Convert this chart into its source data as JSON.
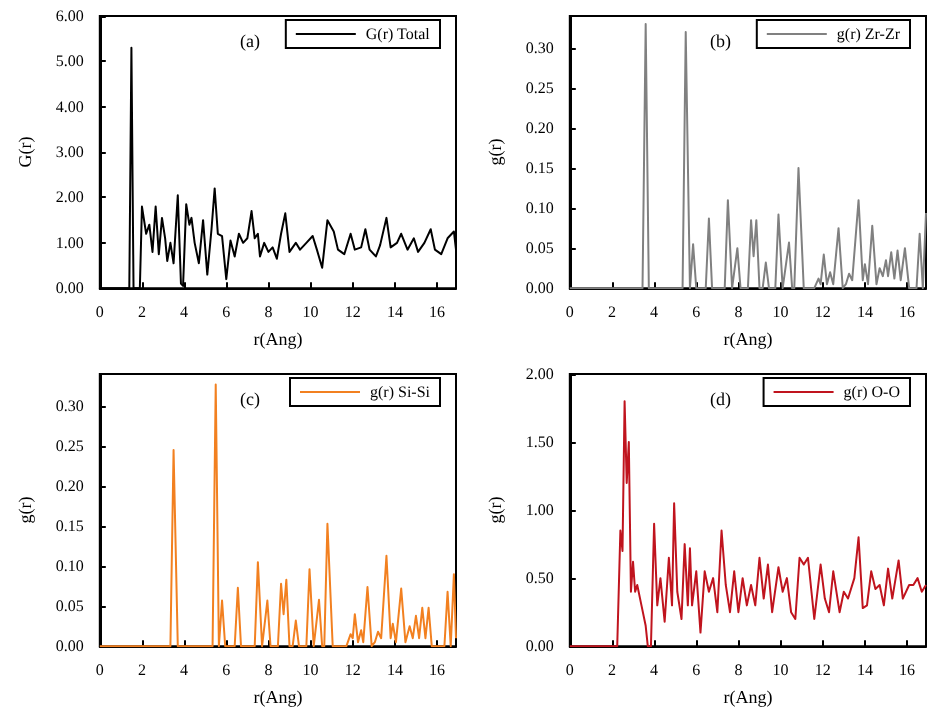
{
  "chart_data": [
    {
      "type": "line",
      "xlabel": "r(Ang)",
      "ylabel": "G(r)",
      "annotations": [
        "(a)"
      ],
      "legend": "top right",
      "grid": false,
      "xlim": [
        0,
        16.9
      ],
      "xticks": [
        0,
        2,
        4,
        6,
        8,
        10,
        12,
        14,
        16
      ],
      "ylim": [
        0,
        6
      ],
      "yticks": [
        {
          "value": 0,
          "label": "0.00"
        },
        {
          "value": 1,
          "label": "1.00"
        },
        {
          "value": 2,
          "label": "2.00"
        },
        {
          "value": 3,
          "label": "3.00"
        },
        {
          "value": 4,
          "label": "4.00"
        },
        {
          "value": 5,
          "label": "5.00"
        },
        {
          "value": 6,
          "label": "6.00"
        }
      ],
      "x": [
        0,
        1.4,
        1.5,
        1.6,
        1.9,
        2.0,
        2.2,
        2.35,
        2.5,
        2.65,
        2.8,
        2.95,
        3.1,
        3.2,
        3.35,
        3.5,
        3.7,
        3.85,
        3.95,
        4.1,
        4.25,
        4.35,
        4.5,
        4.7,
        4.9,
        5.1,
        5.3,
        5.45,
        5.6,
        5.8,
        6.0,
        6.2,
        6.4,
        6.6,
        6.8,
        7.0,
        7.2,
        7.35,
        7.5,
        7.6,
        7.8,
        8.0,
        8.2,
        8.4,
        8.6,
        8.8,
        9.0,
        9.3,
        9.5,
        9.8,
        10.1,
        10.3,
        10.55,
        10.8,
        11.1,
        11.3,
        11.6,
        11.9,
        12.1,
        12.4,
        12.6,
        12.8,
        13.1,
        13.3,
        13.6,
        13.8,
        14.1,
        14.3,
        14.6,
        14.9,
        15.1,
        15.4,
        15.7,
        15.9,
        16.2,
        16.5,
        16.8,
        16.9
      ],
      "series": [
        {
          "name": "G(r) Total",
          "color": "#000000",
          "values": [
            0,
            0,
            5.3,
            0,
            0,
            1.8,
            1.2,
            1.4,
            0.8,
            1.8,
            0.75,
            1.55,
            1.1,
            0.6,
            1.0,
            0.55,
            2.05,
            0.1,
            0.05,
            1.85,
            1.4,
            1.55,
            1.0,
            0.55,
            1.5,
            0.3,
            1.3,
            2.2,
            1.2,
            1.15,
            0.2,
            1.05,
            0.7,
            1.2,
            1.0,
            1.1,
            1.7,
            1.1,
            1.2,
            0.7,
            1.0,
            0.8,
            0.9,
            0.65,
            1.2,
            1.65,
            0.8,
            1.0,
            0.85,
            1.0,
            1.15,
            0.85,
            0.45,
            1.5,
            1.25,
            0.85,
            0.75,
            1.2,
            0.85,
            0.9,
            1.3,
            0.85,
            0.7,
            0.95,
            1.55,
            0.9,
            1.0,
            1.2,
            0.85,
            1.1,
            0.8,
            1.0,
            1.3,
            0.85,
            0.75,
            1.1,
            1.25,
            0.85
          ]
        }
      ]
    },
    {
      "type": "line",
      "xlabel": "r(Ang)",
      "ylabel": "g(r)",
      "annotations": [
        "(b)"
      ],
      "legend": "top right",
      "grid": false,
      "xlim": [
        0,
        16.9
      ],
      "xticks": [
        0,
        2,
        4,
        6,
        8,
        10,
        12,
        14,
        16
      ],
      "ylim": [
        0,
        0.34
      ],
      "yticks": [
        {
          "value": 0,
          "label": "0.00"
        },
        {
          "value": 0.05,
          "label": "0.05"
        },
        {
          "value": 0.1,
          "label": "0.10"
        },
        {
          "value": 0.15,
          "label": "0.15"
        },
        {
          "value": 0.2,
          "label": "0.20"
        },
        {
          "value": 0.25,
          "label": "0.25"
        },
        {
          "value": 0.3,
          "label": "0.30"
        }
      ],
      "x": [
        0,
        3.45,
        3.6,
        3.75,
        5.35,
        5.5,
        5.7,
        5.85,
        6.0,
        6.45,
        6.6,
        6.75,
        7.35,
        7.5,
        7.7,
        7.95,
        8.1,
        8.45,
        8.6,
        8.72,
        8.85,
        9.0,
        9.15,
        9.3,
        9.45,
        9.75,
        9.9,
        10.1,
        10.4,
        10.55,
        10.65,
        10.85,
        11.1,
        11.6,
        11.8,
        11.9,
        12.05,
        12.2,
        12.35,
        12.5,
        12.75,
        12.95,
        13.1,
        13.25,
        13.4,
        13.7,
        13.9,
        14.0,
        14.15,
        14.35,
        14.55,
        14.7,
        14.85,
        15.0,
        15.1,
        15.25,
        15.4,
        15.55,
        15.7,
        15.9,
        16.1,
        16.45,
        16.6,
        16.75,
        16.9
      ],
      "series": [
        {
          "name": "g(r) Zr-Zr",
          "color": "#808080",
          "values": [
            0,
            0,
            0.33,
            0,
            0,
            0.32,
            0,
            0.055,
            0,
            0,
            0.087,
            0,
            0,
            0.11,
            0,
            0.05,
            0,
            0,
            0.085,
            0.04,
            0.085,
            0,
            0,
            0.032,
            0,
            0,
            0.092,
            0,
            0.057,
            0,
            0,
            0.15,
            0,
            0,
            0.012,
            0.005,
            0.042,
            0.005,
            0.02,
            0.005,
            0.075,
            0,
            0.005,
            0.018,
            0.01,
            0.11,
            0.01,
            0.03,
            0.005,
            0.078,
            0.005,
            0.025,
            0.015,
            0.035,
            0.015,
            0.045,
            0.012,
            0.047,
            0.01,
            0.05,
            0,
            0,
            0.068,
            0,
            0.094
          ]
        }
      ]
    },
    {
      "type": "line",
      "xlabel": "r(Ang)",
      "ylabel": "g(r)",
      "annotations": [
        "(c)"
      ],
      "legend": "top right",
      "grid": false,
      "xlim": [
        0,
        16.9
      ],
      "xticks": [
        0,
        2,
        4,
        6,
        8,
        10,
        12,
        14,
        16
      ],
      "ylim": [
        0,
        0.34
      ],
      "yticks": [
        {
          "value": 0,
          "label": "0.00"
        },
        {
          "value": 0.05,
          "label": "0.05"
        },
        {
          "value": 0.1,
          "label": "0.10"
        },
        {
          "value": 0.15,
          "label": "0.15"
        },
        {
          "value": 0.2,
          "label": "0.20"
        },
        {
          "value": 0.25,
          "label": "0.25"
        },
        {
          "value": 0.3,
          "label": "0.30"
        }
      ],
      "x": [
        0,
        3.35,
        3.5,
        3.7,
        5.35,
        5.5,
        5.65,
        5.8,
        5.95,
        6.4,
        6.55,
        6.7,
        7.35,
        7.5,
        7.7,
        7.95,
        8.1,
        8.25,
        8.45,
        8.6,
        8.72,
        8.85,
        9.0,
        9.15,
        9.3,
        9.45,
        9.8,
        9.95,
        10.15,
        10.4,
        10.55,
        10.65,
        10.8,
        11.05,
        11.7,
        11.9,
        12.0,
        12.1,
        12.25,
        12.4,
        12.5,
        12.7,
        12.9,
        13.05,
        13.2,
        13.35,
        13.6,
        13.8,
        13.9,
        14.05,
        14.3,
        14.5,
        14.7,
        14.85,
        15.0,
        15.15,
        15.3,
        15.45,
        15.6,
        15.75,
        16.1,
        16.35,
        16.5,
        16.65,
        16.8,
        16.9
      ],
      "series": [
        {
          "name": "g(r) Si-Si",
          "color": "#f28020",
          "values": [
            0,
            0,
            0.245,
            0,
            0,
            0.327,
            0,
            0.057,
            0,
            0,
            0.073,
            0,
            0,
            0.105,
            0,
            0.057,
            0,
            0,
            0,
            0.078,
            0.04,
            0.083,
            0,
            0,
            0.032,
            0,
            0,
            0.096,
            0,
            0.058,
            0,
            0,
            0.153,
            0,
            0,
            0.015,
            0.01,
            0.04,
            0.005,
            0.02,
            0.005,
            0.074,
            0,
            0.005,
            0.018,
            0.01,
            0.113,
            0.01,
            0.028,
            0.005,
            0.072,
            0.005,
            0.025,
            0.01,
            0.038,
            0.01,
            0.048,
            0.01,
            0.048,
            0,
            0,
            0,
            0.068,
            0,
            0.09,
            0.01
          ]
        }
      ]
    },
    {
      "type": "line",
      "xlabel": "r(Ang)",
      "ylabel": "g(r)",
      "annotations": [
        "(d)"
      ],
      "legend": "top right",
      "grid": false,
      "xlim": [
        0,
        16.9
      ],
      "xticks": [
        0,
        2,
        4,
        6,
        8,
        10,
        12,
        14,
        16
      ],
      "ylim": [
        0,
        2
      ],
      "yticks": [
        {
          "value": 0,
          "label": "0.00"
        },
        {
          "value": 0.5,
          "label": "0.50"
        },
        {
          "value": 1,
          "label": "1.00"
        },
        {
          "value": 1.5,
          "label": "1.50"
        },
        {
          "value": 2,
          "label": "2.00"
        }
      ],
      "x": [
        0,
        2.25,
        2.4,
        2.5,
        2.6,
        2.7,
        2.8,
        2.9,
        3.0,
        3.1,
        3.2,
        3.4,
        3.6,
        3.7,
        3.85,
        4.0,
        4.15,
        4.3,
        4.5,
        4.7,
        4.85,
        4.95,
        5.1,
        5.3,
        5.45,
        5.6,
        5.7,
        5.8,
        6.0,
        6.2,
        6.4,
        6.6,
        6.8,
        7.0,
        7.2,
        7.4,
        7.6,
        7.8,
        8.0,
        8.2,
        8.4,
        8.6,
        8.8,
        9.0,
        9.2,
        9.4,
        9.6,
        9.9,
        10.1,
        10.3,
        10.5,
        10.7,
        10.9,
        11.1,
        11.3,
        11.6,
        11.9,
        12.1,
        12.3,
        12.5,
        12.8,
        13.0,
        13.2,
        13.5,
        13.7,
        13.9,
        14.1,
        14.3,
        14.5,
        14.7,
        14.9,
        15.1,
        15.3,
        15.6,
        15.8,
        16.1,
        16.3,
        16.5,
        16.7,
        16.9
      ],
      "series": [
        {
          "name": "g(r) O-O",
          "color": "#c0141e",
          "values": [
            0,
            0,
            0.85,
            0.7,
            1.8,
            1.2,
            1.5,
            0.4,
            0.62,
            0.4,
            0.45,
            0.3,
            0.15,
            0,
            0,
            0.9,
            0.3,
            0.5,
            0.18,
            0.65,
            0.3,
            1.05,
            0.4,
            0.2,
            0.75,
            0.3,
            0.72,
            0.3,
            0.55,
            0.1,
            0.55,
            0.4,
            0.5,
            0.25,
            0.85,
            0.45,
            0.25,
            0.55,
            0.25,
            0.5,
            0.3,
            0.45,
            0.3,
            0.65,
            0.35,
            0.6,
            0.25,
            0.58,
            0.4,
            0.5,
            0.25,
            0.2,
            0.65,
            0.6,
            0.65,
            0.2,
            0.6,
            0.35,
            0.25,
            0.55,
            0.25,
            0.4,
            0.35,
            0.5,
            0.8,
            0.28,
            0.3,
            0.55,
            0.42,
            0.45,
            0.3,
            0.57,
            0.35,
            0.63,
            0.35,
            0.45,
            0.45,
            0.5,
            0.4,
            0.45
          ]
        }
      ]
    }
  ]
}
